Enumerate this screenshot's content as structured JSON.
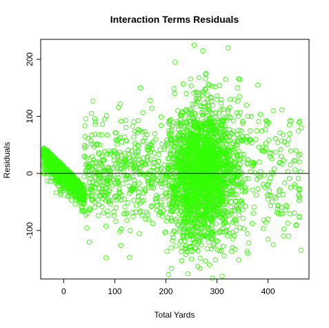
{
  "chart_data": {
    "type": "scatter",
    "title": "Interaction Terms Residuals",
    "xlabel": "Total Yards",
    "ylabel": "Residuals",
    "xlim": [
      -45,
      480
    ],
    "ylim": [
      -185,
      235
    ],
    "xticks": [
      0,
      100,
      200,
      300,
      400
    ],
    "yticks": [
      -100,
      0,
      100,
      200
    ],
    "reference_line_y": 0,
    "marker": "open-circle",
    "point_color": "#33ff00",
    "point_clusters": [
      {
        "x_range": [
          -40,
          40
        ],
        "y_center_at_x_min": 33,
        "y_slope": -0.85,
        "y_spread": 14,
        "count": 700
      },
      {
        "x_range": [
          40,
          200
        ],
        "y_center": 0,
        "y_spread": 45,
        "count": 450
      },
      {
        "x_range": [
          200,
          380
        ],
        "y_center": 0,
        "y_spread": 60,
        "count": 2200
      },
      {
        "x_range": [
          380,
          465
        ],
        "y_center": 0,
        "y_spread": 55,
        "count": 120
      }
    ],
    "sample_points": [
      [
        -38,
        35
      ],
      [
        -30,
        30
      ],
      [
        -20,
        22
      ],
      [
        -10,
        15
      ],
      [
        0,
        8
      ],
      [
        10,
        0
      ],
      [
        20,
        -10
      ],
      [
        30,
        -20
      ],
      [
        40,
        -30
      ],
      [
        60,
        50
      ],
      [
        80,
        95
      ],
      [
        100,
        -40
      ],
      [
        150,
        150
      ],
      [
        200,
        50
      ],
      [
        218,
        195
      ],
      [
        240,
        140
      ],
      [
        255,
        225
      ],
      [
        272,
        215
      ],
      [
        285,
        155
      ],
      [
        300,
        130
      ],
      [
        322,
        220
      ],
      [
        340,
        150
      ],
      [
        360,
        100
      ],
      [
        380,
        155
      ],
      [
        410,
        110
      ],
      [
        440,
        60
      ],
      [
        465,
        80
      ],
      [
        230,
        -130
      ],
      [
        250,
        -150
      ],
      [
        285,
        -160
      ],
      [
        310,
        -180
      ],
      [
        330,
        -130
      ],
      [
        360,
        -140
      ],
      [
        400,
        -80
      ],
      [
        440,
        -110
      ],
      [
        455,
        -90
      ],
      [
        130,
        -100
      ],
      [
        160,
        -80
      ],
      [
        190,
        -60
      ]
    ]
  }
}
